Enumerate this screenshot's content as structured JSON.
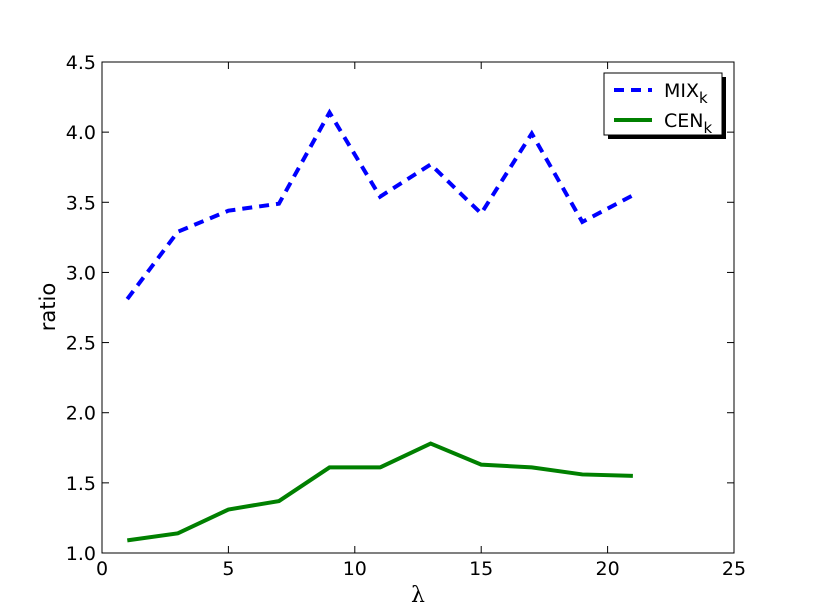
{
  "chart_data": {
    "type": "line",
    "x": [
      1,
      3,
      5,
      7,
      9,
      11,
      13,
      15,
      17,
      19,
      21
    ],
    "series": [
      {
        "name": "MIX",
        "name_subscript": "k",
        "color": "#0000ff",
        "dash": true,
        "values": [
          2.81,
          3.29,
          3.44,
          3.49,
          4.14,
          3.54,
          3.77,
          3.42,
          3.99,
          3.36,
          3.55
        ]
      },
      {
        "name": "CEN",
        "name_subscript": "k",
        "color": "#008000",
        "dash": false,
        "values": [
          1.09,
          1.14,
          1.31,
          1.37,
          1.61,
          1.61,
          1.78,
          1.63,
          1.61,
          1.56,
          1.55
        ]
      }
    ],
    "xlabel": "λ",
    "ylabel": "ratio",
    "xlim": [
      0,
      25
    ],
    "xticks": [
      0,
      5,
      10,
      15,
      20,
      25
    ],
    "ylim": [
      1,
      4.5
    ],
    "yticks": [
      {
        "value": 1,
        "label": "1.0"
      },
      1.5,
      {
        "value": 2,
        "label": "2.0"
      },
      2.5,
      {
        "value": 3,
        "label": "3.0"
      },
      3.5,
      {
        "value": 4,
        "label": "4.0"
      },
      4.5
    ],
    "legend": "upper right",
    "grid": false
  }
}
